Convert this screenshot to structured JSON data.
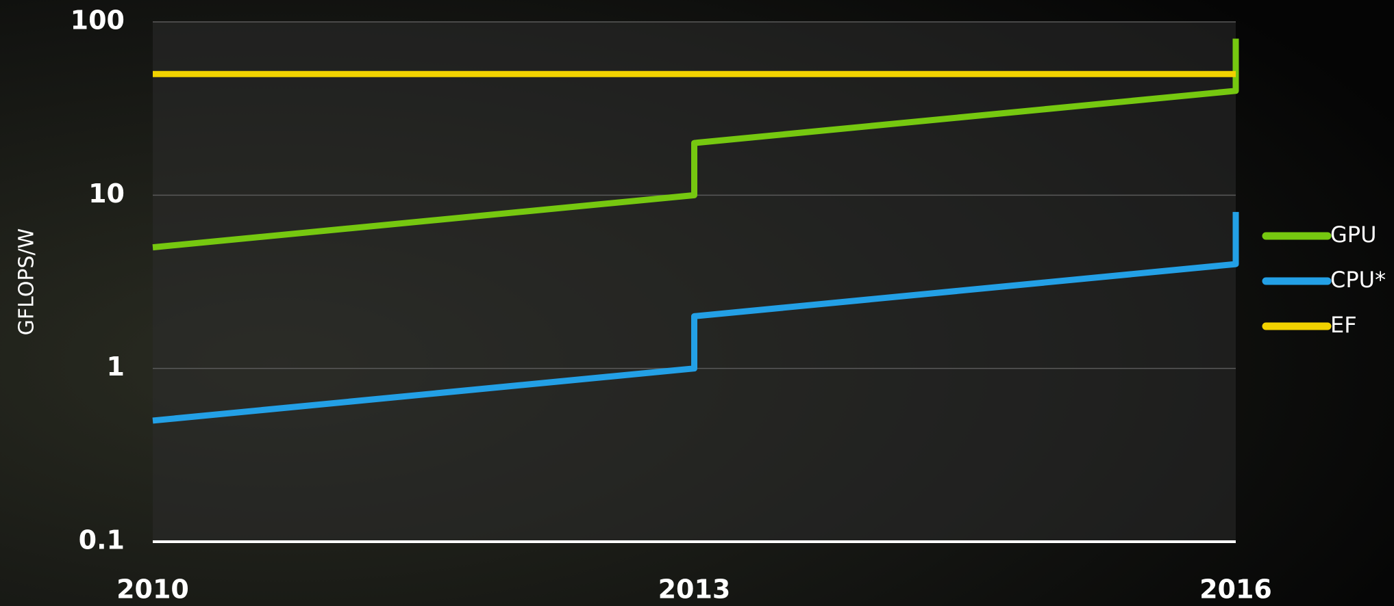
{
  "chart_data": {
    "type": "line",
    "ylabel": "GFLOPS/W",
    "x": [
      2010,
      2013,
      2013,
      2016,
      2016
    ],
    "series": [
      {
        "name": "GPU",
        "color": "#76c810",
        "values": [
          5,
          10,
          20,
          40,
          80
        ]
      },
      {
        "name": "CPU*",
        "color": "#23a0e6",
        "values": [
          0.5,
          1,
          2,
          4,
          8
        ]
      },
      {
        "name": "EF",
        "color": "#f2d200",
        "values": [
          50,
          50,
          50,
          50,
          50
        ]
      }
    ],
    "xlim": [
      2010,
      2016
    ],
    "xticks": [
      2010,
      2013,
      2016
    ],
    "ylim": [
      0.1,
      100
    ],
    "yticks": [
      0.1,
      1,
      10,
      100
    ],
    "log_y": true,
    "grid": true,
    "legend": "right"
  }
}
